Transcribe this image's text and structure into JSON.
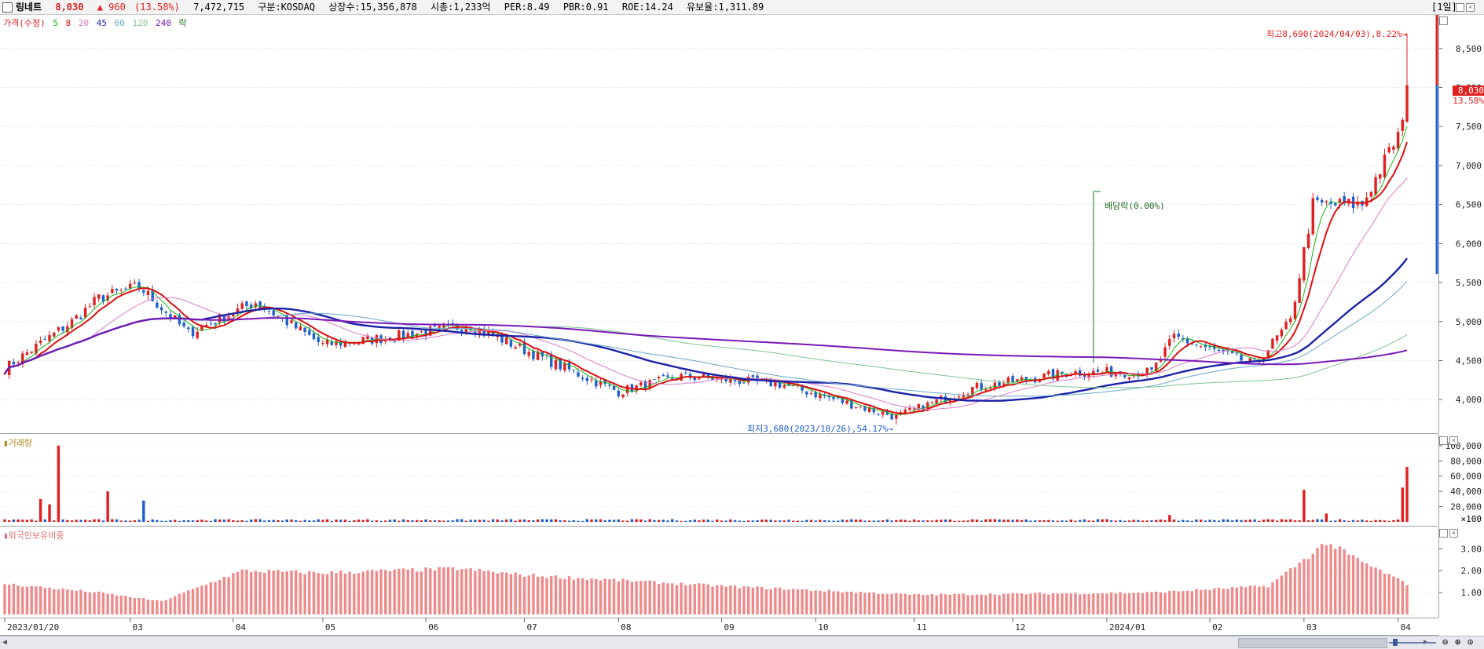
{
  "header": {
    "name": "링네트",
    "price": "8,030",
    "change": "▲ 960",
    "change_pct": "(13.58%)",
    "volume": "7,472,715",
    "market": "구분:KOSDAQ",
    "shares": "상장수:15,356,878",
    "mcap": "시총:1,233억",
    "per": "PER:8.49",
    "pbr": "PBR:0.91",
    "roe": "ROE:14.24",
    "float": "유보율:1,311.89",
    "period": "[1일]"
  },
  "colors": {
    "up": "#e02020",
    "down": "#1f5fd0",
    "ma5": "#18b818",
    "ma8": "#e01010",
    "ma20": "#e07ac8",
    "ma45": "#1a22a8",
    "ma60": "#68a8c8",
    "ma120": "#7cc690",
    "ma240": "#7a18b8",
    "foreign": "#f08a8a"
  },
  "price_pane": {
    "legend": [
      "가격(수정)",
      "5",
      "8",
      "20",
      "45",
      "60",
      "120",
      "240",
      "락"
    ],
    "annotations": {
      "high": "최고8,690(2024/04/03),8.22%→",
      "low": "최저3,680(2023/10/26),54.17%→",
      "dividend": "배당락(0.00%)",
      "current_price": "8,030",
      "current_pct": "13.58%"
    }
  },
  "volume_pane": {
    "legend": "거래량",
    "unit_label": "×100"
  },
  "foreign_pane": {
    "legend": "외국인보유비중"
  },
  "chart_data": [
    {
      "type": "candlestick",
      "title": "링네트",
      "x_labels": [
        "2023/01/20",
        "03",
        "04",
        "05",
        "06",
        "07",
        "08",
        "09",
        "10",
        "11",
        "12",
        "2024/01",
        "02",
        "03",
        "04"
      ],
      "y_ticks": [
        4000,
        4500,
        5000,
        5500,
        6000,
        6500,
        7000,
        7500,
        8000,
        8500
      ],
      "ylim": [
        3650,
        8850
      ],
      "anchors": [
        {
          "date": "2023-01-20",
          "close": 4400
        },
        {
          "date": "2023-02-10",
          "close": 5000
        },
        {
          "date": "2023-02-20",
          "close": 5300
        },
        {
          "date": "2023-03-03",
          "close": 5450
        },
        {
          "date": "2023-03-20",
          "close": 4850
        },
        {
          "date": "2023-04-10",
          "close": 5250
        },
        {
          "date": "2023-05-01",
          "close": 4700
        },
        {
          "date": "2023-05-20",
          "close": 4800
        },
        {
          "date": "2023-06-15",
          "close": 4950
        },
        {
          "date": "2023-07-20",
          "close": 4300
        },
        {
          "date": "2023-08-01",
          "close": 4100
        },
        {
          "date": "2023-08-20",
          "close": 4300
        },
        {
          "date": "2023-09-20",
          "close": 4200
        },
        {
          "date": "2023-10-26",
          "close": 3780
        },
        {
          "date": "2023-11-20",
          "close": 4150
        },
        {
          "date": "2023-12-20",
          "close": 4350
        },
        {
          "date": "2024-01-15",
          "close": 4350
        },
        {
          "date": "2024-01-22",
          "close": 4800
        },
        {
          "date": "2024-02-15",
          "close": 4450
        },
        {
          "date": "2024-02-27",
          "close": 5000
        },
        {
          "date": "2024-03-05",
          "close": 6500
        },
        {
          "date": "2024-03-20",
          "close": 6500
        },
        {
          "date": "2024-04-02",
          "close": 7500
        },
        {
          "date": "2024-04-03",
          "close": 8030
        }
      ],
      "high": {
        "date": "2024-04-03",
        "value": 8690
      },
      "low": {
        "date": "2023-10-26",
        "value": 3680
      },
      "last_close": 8030,
      "moving_averages": [
        5,
        8,
        20,
        45,
        60,
        120,
        240
      ]
    },
    {
      "type": "bar",
      "title": "거래량",
      "y_ticks": [
        20000,
        40000,
        60000,
        80000,
        100000
      ],
      "ylim": [
        0,
        105000
      ],
      "spikes": [
        {
          "date": "2023-02-07",
          "value": 100000
        },
        {
          "date": "2023-02-01",
          "value": 30000
        },
        {
          "date": "2023-02-03",
          "value": 23000
        },
        {
          "date": "2023-02-22",
          "value": 40000
        },
        {
          "date": "2023-03-06",
          "value": 28000
        },
        {
          "date": "2024-01-19",
          "value": 9000
        },
        {
          "date": "2024-03-01",
          "value": 42000
        },
        {
          "date": "2024-03-08",
          "value": 11000
        },
        {
          "date": "2024-04-02",
          "value": 45000
        },
        {
          "date": "2024-04-03",
          "value": 72000
        }
      ]
    },
    {
      "type": "bar",
      "title": "외국인보유비중",
      "y_ticks": [
        1.0,
        2.0,
        3.0
      ],
      "ylim": [
        0,
        3.8
      ],
      "anchors": [
        {
          "date": "2023-01-20",
          "value": 1.4
        },
        {
          "date": "2023-02-20",
          "value": 1.0
        },
        {
          "date": "2023-03-10",
          "value": 0.6
        },
        {
          "date": "2023-04-05",
          "value": 2.0
        },
        {
          "date": "2023-05-01",
          "value": 1.9
        },
        {
          "date": "2023-06-10",
          "value": 2.1
        },
        {
          "date": "2023-07-01",
          "value": 1.8
        },
        {
          "date": "2023-09-01",
          "value": 1.3
        },
        {
          "date": "2023-11-01",
          "value": 0.9
        },
        {
          "date": "2024-01-15",
          "value": 1.0
        },
        {
          "date": "2024-02-20",
          "value": 1.3
        },
        {
          "date": "2024-03-01",
          "value": 2.5
        },
        {
          "date": "2024-03-08",
          "value": 3.3
        },
        {
          "date": "2024-03-20",
          "value": 2.4
        },
        {
          "date": "2024-04-03",
          "value": 1.4
        }
      ]
    }
  ]
}
